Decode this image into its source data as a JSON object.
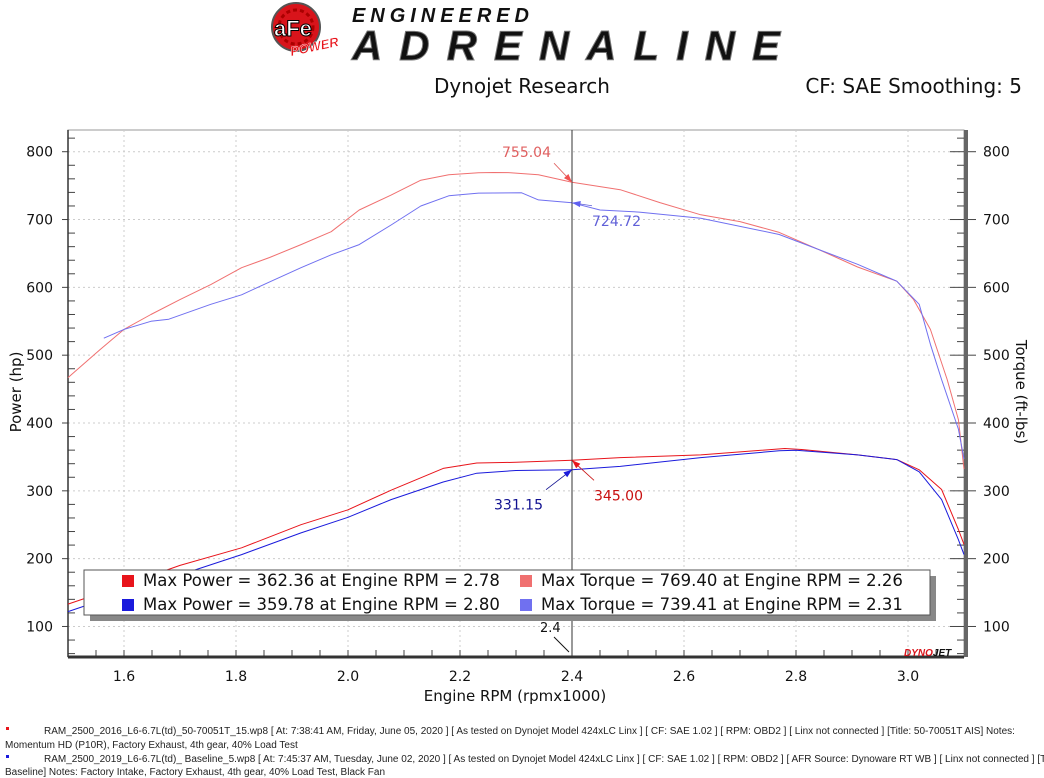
{
  "header": {
    "logo_brand": "aFe POWER",
    "logo_tagline_top": "ENGINEERED",
    "logo_tagline_main": "ADRENALINE",
    "left_title": "Dynojet Research",
    "right_title": "CF: SAE Smoothing: 5"
  },
  "chart_data": {
    "type": "line",
    "xlabel": "Engine RPM (rpmx1000)",
    "ylabel_left": "Power (hp)",
    "ylabel_right": "Torque (ft-lbs)",
    "xlim": [
      1.5,
      3.1
    ],
    "ylim": [
      55,
      832
    ],
    "x_ticks": [
      "1.6",
      "1.8",
      "2.0",
      "2.2",
      "2.4",
      "2.6",
      "2.8",
      "3.0"
    ],
    "y_ticks": [
      "100",
      "200",
      "300",
      "400",
      "500",
      "600",
      "700",
      "800"
    ],
    "grid": true,
    "colors": {
      "run1_power": "#e8141b",
      "run2_power": "#1a1adc",
      "run1_torque": "#f07070",
      "run2_torque": "#7070f0"
    },
    "series": [
      {
        "key": "run1_torque",
        "x": [
          1.5,
          1.557,
          1.6,
          1.648,
          1.7,
          1.755,
          1.81,
          1.86,
          1.916,
          1.97,
          2.02,
          2.077,
          2.13,
          2.18,
          2.233,
          2.26,
          2.29,
          2.34,
          2.4,
          2.486,
          2.557,
          2.63,
          2.7,
          2.77,
          2.84,
          2.91,
          2.98,
          3.01,
          3.04,
          3.07,
          3.09,
          3.1
        ],
        "y": [
          467,
          508,
          538,
          560,
          582,
          604,
          629,
          644,
          663,
          682,
          714,
          736,
          758,
          766,
          769,
          769.4,
          769,
          766,
          755.04,
          744,
          725,
          707,
          697,
          681,
          656,
          630,
          609,
          582,
          538,
          464,
          405,
          332
        ]
      },
      {
        "key": "run2_torque",
        "x": [
          1.564,
          1.6,
          1.648,
          1.68,
          1.755,
          1.81,
          1.86,
          1.916,
          1.97,
          2.02,
          2.077,
          2.13,
          2.18,
          2.233,
          2.31,
          2.34,
          2.4,
          2.45,
          2.52,
          2.63,
          2.77,
          2.91,
          2.98,
          3.02,
          3.04,
          3.06,
          3.09,
          3.1
        ],
        "y": [
          525,
          538,
          550,
          553,
          575,
          589,
          608,
          629,
          648,
          663,
          692,
          720,
          735,
          739,
          739.41,
          729,
          724.72,
          714,
          711,
          702,
          678,
          634,
          609,
          575,
          516,
          464,
          391,
          347
        ]
      },
      {
        "key": "run1_power",
        "x": [
          1.5,
          1.6,
          1.7,
          1.81,
          1.916,
          2.0,
          2.077,
          2.17,
          2.23,
          2.3,
          2.4,
          2.486,
          2.63,
          2.78,
          2.81,
          2.91,
          2.98,
          3.02,
          3.06,
          3.09,
          3.1
        ],
        "y": [
          133,
          161,
          190,
          216,
          250,
          272,
          301,
          333,
          341,
          342,
          345.0,
          349,
          353,
          362.36,
          361,
          353,
          346,
          331,
          302,
          243,
          221
        ]
      },
      {
        "key": "run2_power",
        "x": [
          1.5,
          1.6,
          1.7,
          1.81,
          1.916,
          2.0,
          2.077,
          2.17,
          2.23,
          2.3,
          2.4,
          2.486,
          2.63,
          2.77,
          2.8,
          2.91,
          2.98,
          3.02,
          3.06,
          3.09,
          3.1
        ],
        "y": [
          122,
          150,
          176,
          206,
          238,
          261,
          287,
          313,
          326,
          330,
          331.15,
          336,
          349,
          359,
          359.78,
          353,
          346,
          328,
          287,
          228,
          206
        ]
      }
    ],
    "cursor": {
      "x_label": "2.4",
      "annotations": [
        {
          "key": "run1_torque",
          "text": "755.04",
          "y": 755.04
        },
        {
          "key": "run2_torque",
          "text": "724.72",
          "y": 724.72
        },
        {
          "key": "run1_power",
          "text": "345.00",
          "y": 345.0
        },
        {
          "key": "run2_power",
          "text": "331.15",
          "y": 331.15
        }
      ]
    },
    "legend": [
      [
        "Max Power = 362.36 at Engine RPM = 2.78",
        "Max Torque = 769.40 at Engine RPM = 2.26"
      ],
      [
        "Max Power = 359.78 at Engine RPM = 2.80",
        "Max Torque = 739.41 at Engine RPM = 2.31"
      ]
    ],
    "watermark": "DYNOJET"
  },
  "footer": {
    "run1_line1": "RAM_2500_2016_L6-6.7L(td)_50-70051T_15.wp8 [ At: 7:38:41 AM, Friday, June 05, 2020 ] [ As tested on Dynojet Model 424xLC Linx ] [ CF: SAE 1.02 ] [ RPM: OBD2 ] [ Linx not connected ] [Title: 50-70051T AIS]  Notes:",
    "run1_line2": "Momentum HD (P10R), Factory Exhaust, 4th gear, 40% Load Test",
    "run2_line1": "RAM_2500_2019_L6-6.7L(td)_ Baseline_5.wp8 [ At: 7:45:37 AM, Tuesday, June 02, 2020 ] [ As tested on Dynojet Model 424xLC Linx ] [ CF: SAE 1.02 ] [ RPM: OBD2 ] [ AFR Source: Dynoware RT WB ] [ Linx not connected ] [Tit",
    "run2_line2": "Baseline]  Notes: Factory Intake, Factory Exhaust, 4th gear, 40% Load Test, Black Fan"
  }
}
